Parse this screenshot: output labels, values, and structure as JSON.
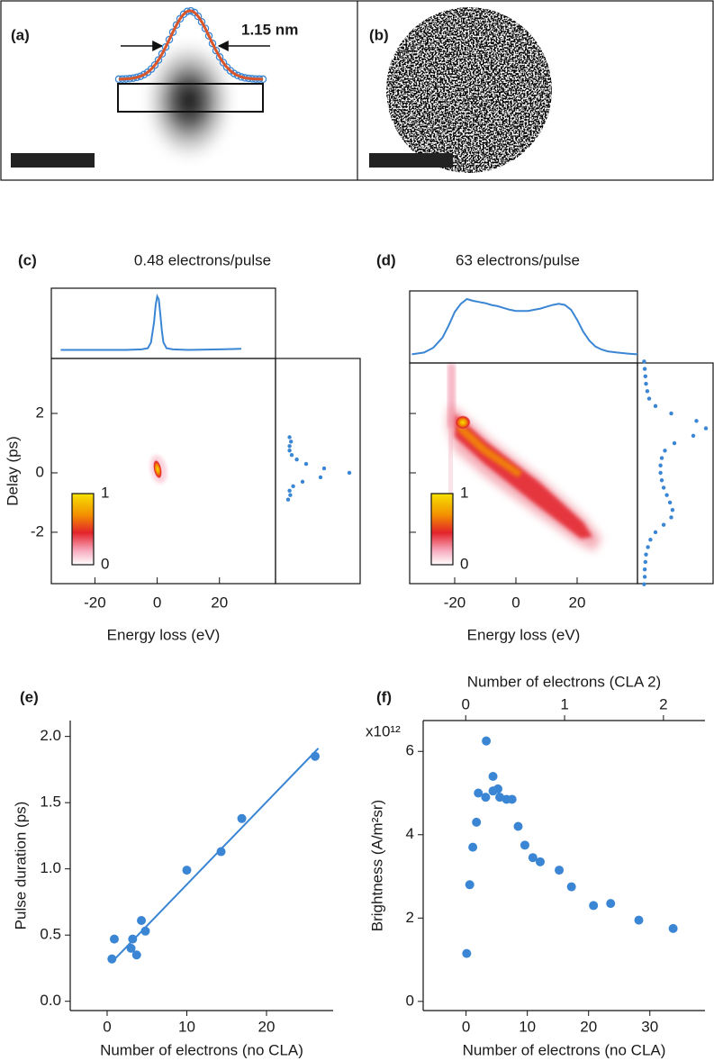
{
  "chart_data": [
    {
      "type": "image",
      "panel": "(a)",
      "annotation": "1.15 nm"
    },
    {
      "type": "image",
      "panel": "(b)"
    },
    {
      "type": "heatmap",
      "panel": "(c)",
      "title": "0.48 electrons/pulse",
      "x_label": "Energy loss (eV)",
      "y_label": "Delay (ps)",
      "xlim": [
        -34,
        38
      ],
      "xticks": [
        -20,
        0,
        20
      ],
      "ylim": [
        -3.73,
        3.85
      ],
      "yticks": [
        -2,
        0,
        2
      ],
      "colorbar_ticks": [
        0,
        1
      ],
      "color": "#3a86d4",
      "top_profile": {
        "x": [
          -31,
          -20,
          -10,
          -5,
          -3,
          -2,
          -1,
          -0.5,
          0,
          0.5,
          1,
          1.5,
          2,
          3,
          5,
          10,
          20,
          27
        ],
        "values": [
          0.07,
          0.07,
          0.07,
          0.08,
          0.1,
          0.2,
          0.55,
          0.85,
          1,
          0.95,
          0.7,
          0.4,
          0.2,
          0.1,
          0.08,
          0.07,
          0.08,
          0.09
        ]
      },
      "side_profile": {
        "y": [
          1.2,
          1.05,
          0.9,
          0.75,
          0.6,
          0.45,
          0.3,
          0.15,
          0,
          -0.15,
          -0.3,
          -0.45,
          -0.6,
          -0.75,
          -0.9
        ],
        "values": [
          0.12,
          0.14,
          0.12,
          0.12,
          0.15,
          0.22,
          0.35,
          0.6,
          0.95,
          0.55,
          0.3,
          0.17,
          0.12,
          0.13,
          0.1
        ]
      }
    },
    {
      "type": "heatmap",
      "panel": "(d)",
      "title": "63 electrons/pulse",
      "x_label": "Energy loss (eV)",
      "xlim": [
        -34.7,
        39.7
      ],
      "xticks": [
        -20,
        0,
        20
      ],
      "ylim": [
        -3.73,
        3.7
      ],
      "yticks": [
        -2,
        0,
        2
      ],
      "ytick_labels": false,
      "colorbar_ticks": [
        0,
        1
      ],
      "color": "#3a86d4",
      "top_profile": {
        "x": [
          -34,
          -30,
          -27,
          -24,
          -22,
          -20,
          -18,
          -16,
          -14,
          -12,
          -10,
          -8,
          -6,
          -4,
          -2,
          0,
          2,
          4,
          6,
          8,
          10,
          12,
          14,
          16,
          18,
          20,
          22,
          24,
          26,
          28,
          30,
          33,
          37,
          39.7
        ],
        "values": [
          0.07,
          0.1,
          0.18,
          0.35,
          0.55,
          0.78,
          0.92,
          1,
          0.97,
          0.95,
          0.93,
          0.9,
          0.88,
          0.85,
          0.82,
          0.8,
          0.8,
          0.8,
          0.82,
          0.84,
          0.87,
          0.9,
          0.92,
          0.9,
          0.82,
          0.65,
          0.45,
          0.3,
          0.2,
          0.15,
          0.12,
          0.1,
          0.08,
          0.07
        ]
      },
      "side_profile": {
        "y": [
          3.75,
          3.5,
          3.25,
          3,
          2.75,
          2.5,
          2.25,
          2,
          1.75,
          1.5,
          1.25,
          1,
          0.75,
          0.5,
          0.25,
          0,
          -0.25,
          -0.5,
          -0.75,
          -1,
          -1.25,
          -1.5,
          -1.75,
          -2,
          -2.25,
          -2.5,
          -2.75,
          -3,
          -3.25,
          -3.5,
          -3.75
        ],
        "values": [
          0.02,
          0.03,
          0.04,
          0.05,
          0.07,
          0.1,
          0.2,
          0.45,
          0.85,
          1,
          0.8,
          0.5,
          0.35,
          0.3,
          0.28,
          0.28,
          0.3,
          0.33,
          0.38,
          0.43,
          0.47,
          0.45,
          0.33,
          0.2,
          0.12,
          0.08,
          0.05,
          0.04,
          0.03,
          0.03,
          0.02
        ]
      }
    },
    {
      "type": "scatter",
      "panel": "(e)",
      "x_label": "Number of electrons (no CLA)",
      "y_label": "Pulse duration (ps)",
      "xlim": [
        -4.63,
        28.36
      ],
      "xticks": [
        0,
        10,
        20
      ],
      "ylim": [
        -0.07,
        2.12
      ],
      "yticks": [
        {
          "value": 0,
          "label": "0.0"
        },
        0.5,
        {
          "value": 1,
          "label": "1.0"
        },
        1.5,
        {
          "value": 2,
          "label": "2.0"
        }
      ],
      "color": "#3a86d4",
      "x": [
        0.6,
        0.9,
        3.0,
        3.2,
        3.7,
        4.3,
        4.8,
        10.0,
        14.3,
        16.9,
        26.1
      ],
      "values": [
        0.32,
        0.47,
        0.4,
        0.47,
        0.35,
        0.61,
        0.53,
        0.99,
        1.13,
        1.38,
        1.85
      ],
      "fit": {
        "x": [
          0.5,
          26.5
        ],
        "values": [
          0.29,
          1.91
        ]
      }
    },
    {
      "type": "scatter",
      "panel": "(f)",
      "x_label": "Number of electrons (no CLA)",
      "x2_label": "Number of electrons (CLA 2)",
      "y_label": "Brightness (A/m²sr)",
      "y_multiplier": "x10¹²",
      "xlim": [
        -7,
        39
      ],
      "xticks": [
        0,
        10,
        20,
        30
      ],
      "x2lim": [
        -0.43,
        2.42
      ],
      "x2ticks": [
        0,
        1,
        2
      ],
      "ylim": [
        -0.22,
        6.74
      ],
      "yticks": [
        0,
        2,
        4,
        6
      ],
      "color": "#3a86d4",
      "x": [
        0.1,
        0.6,
        1.1,
        1.7,
        2.0,
        3.2,
        3.3,
        4.4,
        4.4,
        5.2,
        5.5,
        6.6,
        7.5,
        8.5,
        9.6,
        10.9,
        12.1,
        15.2,
        17.2,
        20.8,
        23.6,
        28.2,
        33.8
      ],
      "values": [
        1.15,
        2.8,
        3.7,
        4.3,
        5.0,
        4.9,
        6.25,
        5.4,
        5.05,
        5.1,
        4.9,
        4.85,
        4.85,
        4.2,
        3.75,
        3.45,
        3.35,
        3.15,
        2.75,
        2.3,
        2.35,
        1.95,
        1.75
      ]
    }
  ]
}
